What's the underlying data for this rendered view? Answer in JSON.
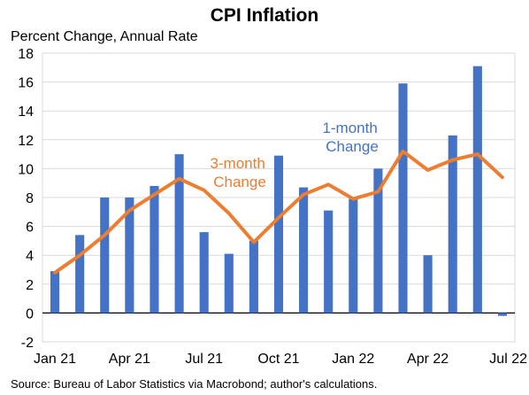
{
  "chart_data": {
    "type": "bar",
    "title": "CPI Inflation",
    "subtitle": "Percent Change, Annual Rate",
    "source": "Source: Bureau of Labor Statistics via Macrobond; author's calculations.",
    "x": [
      "Jan 21",
      "Feb 21",
      "Mar 21",
      "Apr 21",
      "May 21",
      "Jun 21",
      "Jul 21",
      "Aug 21",
      "Sep 21",
      "Oct 21",
      "Nov 21",
      "Dec 21",
      "Jan 22",
      "Feb 22",
      "Mar 22",
      "Apr 22",
      "May 22",
      "Jun 22",
      "Jul 22"
    ],
    "x_tick_labels": [
      {
        "index": 0,
        "label": "Jan 21"
      },
      {
        "index": 3,
        "label": "Apr 21"
      },
      {
        "index": 6,
        "label": "Jul 21"
      },
      {
        "index": 9,
        "label": "Oct 21"
      },
      {
        "index": 12,
        "label": "Jan 22"
      },
      {
        "index": 15,
        "label": "Apr 22"
      },
      {
        "index": 18,
        "label": "Jul 22"
      }
    ],
    "ylim": [
      -2,
      18
    ],
    "yticks": [
      -2,
      0,
      2,
      4,
      6,
      8,
      10,
      12,
      14,
      16,
      18
    ],
    "grid": true,
    "series": [
      {
        "name": "1-month Change",
        "type": "bar",
        "color": "#4472C4",
        "values": [
          2.9,
          5.4,
          8.0,
          8.0,
          8.8,
          11.0,
          5.6,
          4.1,
          5.0,
          10.9,
          8.7,
          7.1,
          7.9,
          10.0,
          15.9,
          4.0,
          12.3,
          17.1,
          -0.2
        ]
      },
      {
        "name": "3-month Change",
        "type": "line",
        "color": "#ED7D31",
        "values": [
          2.8,
          4.0,
          5.4,
          7.1,
          8.2,
          9.3,
          8.5,
          6.9,
          4.9,
          6.6,
          8.2,
          8.9,
          7.9,
          8.4,
          11.2,
          9.9,
          10.6,
          11.0,
          9.4
        ]
      }
    ],
    "annotations": [
      {
        "series": "1-month Change",
        "lines": [
          "1-month",
          "Change"
        ]
      },
      {
        "series": "3-month Change",
        "lines": [
          "3-month",
          "Change"
        ]
      }
    ]
  }
}
